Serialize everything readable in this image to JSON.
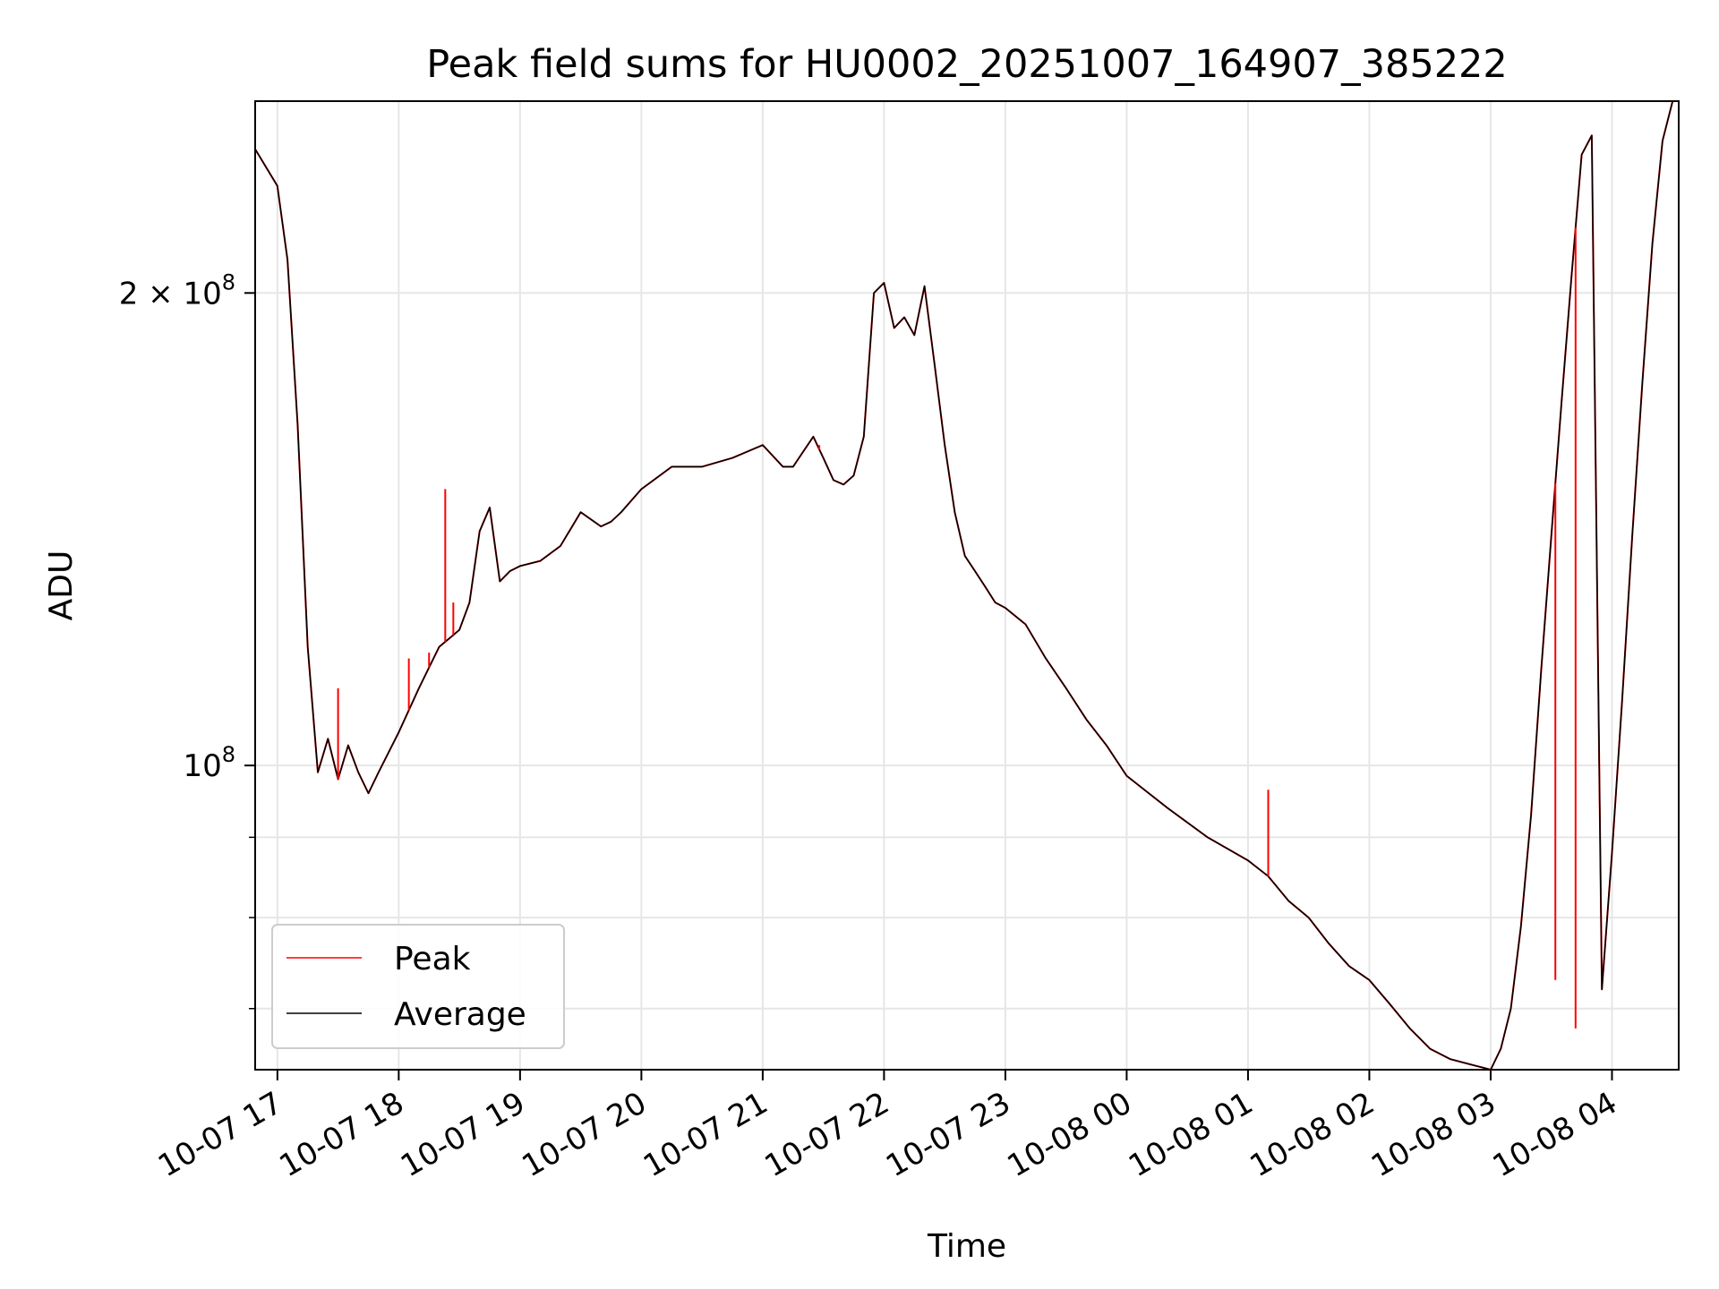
{
  "chart_data": {
    "type": "line",
    "title": "Peak field sums for HU0002_20251007_164907_385222",
    "xlabel": "Time",
    "ylabel": "ADU",
    "y_scale": "log",
    "xlim": [
      "2025-10-07 16:49",
      "2025-10-08 04:33"
    ],
    "ylim": [
      64000000,
      265000000
    ],
    "grid": true,
    "legend_position": "bottom-left",
    "x_ticks": [
      "10-07 17",
      "10-07 18",
      "10-07 19",
      "10-07 20",
      "10-07 21",
      "10-07 22",
      "10-07 23",
      "10-08 00",
      "10-08 01",
      "10-08 02",
      "10-08 03",
      "10-08 04"
    ],
    "y_ticks": [
      {
        "value": 100000000,
        "label_base": "10",
        "label_exp": "8"
      },
      {
        "value": 200000000,
        "label_base": "2 × 10",
        "label_exp": "8"
      }
    ],
    "y_minor_ticks": [
      70000000,
      80000000,
      90000000
    ],
    "x": [
      "10-07 16:49",
      "10-07 17:00",
      "10-07 17:05",
      "10-07 17:10",
      "10-07 17:15",
      "10-07 17:20",
      "10-07 17:25",
      "10-07 17:30",
      "10-07 17:35",
      "10-07 17:40",
      "10-07 17:45",
      "10-07 17:50",
      "10-07 18:00",
      "10-07 18:10",
      "10-07 18:20",
      "10-07 18:30",
      "10-07 18:35",
      "10-07 18:40",
      "10-07 18:45",
      "10-07 18:50",
      "10-07 18:55",
      "10-07 19:00",
      "10-07 19:10",
      "10-07 19:20",
      "10-07 19:30",
      "10-07 19:40",
      "10-07 19:45",
      "10-07 19:50",
      "10-07 20:00",
      "10-07 20:15",
      "10-07 20:30",
      "10-07 20:45",
      "10-07 21:00",
      "10-07 21:10",
      "10-07 21:15",
      "10-07 21:25",
      "10-07 21:30",
      "10-07 21:35",
      "10-07 21:40",
      "10-07 21:45",
      "10-07 21:50",
      "10-07 21:55",
      "10-07 22:00",
      "10-07 22:05",
      "10-07 22:10",
      "10-07 22:15",
      "10-07 22:20",
      "10-07 22:25",
      "10-07 22:30",
      "10-07 22:35",
      "10-07 22:40",
      "10-07 22:45",
      "10-07 22:50",
      "10-07 22:55",
      "10-07 23:00",
      "10-07 23:10",
      "10-07 23:20",
      "10-07 23:30",
      "10-07 23:40",
      "10-07 23:50",
      "10-08 00:00",
      "10-08 00:20",
      "10-08 00:40",
      "10-08 01:00",
      "10-08 01:10",
      "10-08 01:20",
      "10-08 01:30",
      "10-08 01:40",
      "10-08 01:50",
      "10-08 02:00",
      "10-08 02:10",
      "10-08 02:20",
      "10-08 02:30",
      "10-08 02:40",
      "10-08 02:50",
      "10-08 03:00",
      "10-08 03:05",
      "10-08 03:10",
      "10-08 03:15",
      "10-08 03:20",
      "10-08 03:25",
      "10-08 03:30",
      "10-08 03:35",
      "10-08 03:40",
      "10-08 03:45",
      "10-08 03:50",
      "10-08 03:55",
      "10-08 04:00",
      "10-08 04:05",
      "10-08 04:10",
      "10-08 04:15",
      "10-08 04:20",
      "10-08 04:25",
      "10-08 04:30"
    ],
    "series": [
      {
        "name": "Peak",
        "color": "#ff0000",
        "values": [
          247000000,
          234000000,
          210000000,
          165000000,
          119000000,
          99000000,
          104000000,
          98000000,
          103000000,
          99000000,
          96000000,
          99000000,
          105000000,
          112000000,
          119000000,
          122000000,
          127000000,
          141000000,
          146000000,
          131000000,
          133000000,
          134000000,
          135000000,
          138000000,
          145000000,
          142000000,
          143000000,
          145000000,
          150000000,
          155000000,
          155000000,
          157000000,
          160000000,
          155000000,
          155000000,
          162000000,
          157000000,
          152000000,
          151000000,
          153000000,
          162000000,
          200000000,
          203000000,
          190000000,
          193000000,
          188000000,
          202000000,
          180000000,
          160000000,
          145000000,
          136000000,
          133000000,
          130000000,
          127000000,
          126000000,
          123000000,
          117000000,
          112000000,
          107000000,
          103000000,
          98500000,
          94000000,
          90000000,
          87000000,
          85000000,
          82000000,
          80000000,
          77000000,
          74500000,
          73000000,
          70500000,
          68000000,
          66000000,
          65000000,
          64500000,
          64000000,
          66000000,
          70000000,
          79000000,
          93000000,
          115000000,
          140000000,
          170000000,
          205000000,
          245000000,
          252000000,
          72000000,
          88000000,
          110000000,
          140000000,
          175000000,
          215000000,
          250000000,
          265000000
        ]
      },
      {
        "name": "Average",
        "color": "#000000",
        "values": [
          247000000,
          234000000,
          210000000,
          165000000,
          119000000,
          99000000,
          104000000,
          98000000,
          103000000,
          99000000,
          96000000,
          99000000,
          105000000,
          112000000,
          119000000,
          122000000,
          127000000,
          141000000,
          146000000,
          131000000,
          133000000,
          134000000,
          135000000,
          138000000,
          145000000,
          142000000,
          143000000,
          145000000,
          150000000,
          155000000,
          155000000,
          157000000,
          160000000,
          155000000,
          155000000,
          162000000,
          157000000,
          152000000,
          151000000,
          153000000,
          162000000,
          200000000,
          203000000,
          190000000,
          193000000,
          188000000,
          202000000,
          180000000,
          160000000,
          145000000,
          136000000,
          133000000,
          130000000,
          127000000,
          126000000,
          123000000,
          117000000,
          112000000,
          107000000,
          103000000,
          98500000,
          94000000,
          90000000,
          87000000,
          85000000,
          82000000,
          80000000,
          77000000,
          74500000,
          73000000,
          70500000,
          68000000,
          66000000,
          65000000,
          64500000,
          64000000,
          66000000,
          70000000,
          79000000,
          93000000,
          115000000,
          140000000,
          170000000,
          205000000,
          245000000,
          252000000,
          72000000,
          88000000,
          110000000,
          140000000,
          175000000,
          215000000,
          250000000,
          265000000
        ]
      }
    ],
    "peak_spikes": [
      {
        "x": "10-07 17:30",
        "value": 112000000
      },
      {
        "x": "10-07 18:05",
        "value": 117000000
      },
      {
        "x": "10-07 18:15",
        "value": 118000000
      },
      {
        "x": "10-07 18:23",
        "value": 150000000
      },
      {
        "x": "10-07 18:27",
        "value": 127000000
      },
      {
        "x": "10-07 21:28",
        "value": 160000000
      },
      {
        "x": "10-08 01:10",
        "value": 96500000
      },
      {
        "x": "10-08 03:32",
        "value": 73000000
      },
      {
        "x": "10-08 03:42",
        "value": 68000000
      }
    ]
  }
}
